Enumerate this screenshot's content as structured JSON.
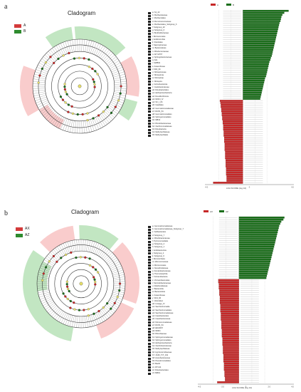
{
  "panels": [
    {
      "letter": "a",
      "title": "Cladogram",
      "legend": [
        {
          "label": "A",
          "color": "#d33b3b"
        },
        {
          "label": "B",
          "color": "#2e8b2e"
        }
      ],
      "colors": {
        "group1": "#c62828",
        "group2": "#1b6e1b",
        "ring": "#333333",
        "green_sector": "#8fd18f",
        "red_sector": "#f4a3a3"
      },
      "bar_legend": [
        "A",
        "B"
      ],
      "axis_label": "LDA SCORE (log 10)",
      "axis_ticks": [
        "-4.0",
        "0",
        "4.0"
      ],
      "list_labels": [
        "a: S1_22",
        "b: Muribaculaceae",
        "c: Muribaculales",
        "d: Rumminococcaceae",
        "e: Muribaculales_Subgroup_6",
        "f: Subgroup_22",
        "g: Subgroup_6",
        "h: Burkholderiaceae",
        "i: Micrococcales",
        "j: Acidimicrobiia",
        "k: Frankiales",
        "l: Saprospiraceae",
        "m: Bacteroidetes",
        "n: Rhodococcaceae",
        "o: AKYH767",
        "p: Sphingobacteriaceae",
        "q: bdo",
        "r: SWB02",
        "s: Anaerolineae",
        "t: KD4_96",
        "u: Nitrospiraceae",
        "v: Nitrospirota",
        "w: Nitrospirae",
        "x: Nitrospira",
        "y: Actinobacteriota",
        "z: Caulobacteraceae",
        "a0: Rokubacteriales",
        "a1: Alphaproteobacteria",
        "a2: Desulfovibrionia",
        "a3: MOF3_IV",
        "a4: SC_I_84",
        "a5: Gaiellales",
        "a6: Gemmatimonadaceae",
        "a7: RCP2_54",
        "a8: Gemmatimonadales",
        "a9: Sphingomonadales",
        "b0: MB19",
        "b1: Rhodobacteraceae",
        "b2: Xanthomonadaceae",
        "b3: Rokubacteria",
        "b4: Methylophilaceae",
        "b5: Methylophilales"
      ],
      "bars_group2": [
        95,
        86,
        82,
        80,
        79,
        78,
        76,
        75,
        74,
        73,
        72,
        71,
        70,
        69,
        68,
        67,
        66,
        65,
        64,
        63,
        62,
        61,
        60,
        58,
        57,
        55,
        54,
        53,
        52,
        51,
        50,
        49,
        48,
        46,
        45,
        44,
        43,
        42,
        41,
        40,
        39,
        38,
        37,
        36
      ],
      "bars_group1": [
        48,
        47,
        46,
        46,
        45,
        45,
        44,
        44,
        43,
        43,
        42,
        42,
        41,
        41,
        41,
        40,
        40,
        40,
        39,
        39,
        39,
        38,
        38,
        38,
        38,
        37,
        37,
        37,
        37,
        36,
        36,
        36,
        36,
        35,
        35,
        35,
        35,
        34,
        34,
        34,
        62
      ]
    },
    {
      "letter": "b",
      "title": "Cladogram",
      "legend": [
        {
          "label": "AX",
          "color": "#d33b3b"
        },
        {
          "label": "AZ",
          "color": "#2e8b2e"
        }
      ],
      "colors": {
        "group1": "#c62828",
        "group2": "#1b6e1b",
        "ring": "#333333",
        "green_sector": "#8fd18f",
        "red_sector": "#f4a3a3"
      },
      "bar_legend": [
        "AX",
        "AZ"
      ],
      "axis_label": "LDA SCORE (log 10)",
      "axis_ticks": [
        "-4.0",
        "-2.0",
        "0",
        "2.0",
        "4.0"
      ],
      "list_labels": [
        "a: Gemmatimonadaceae",
        "b: Gemmatimonadaceae_Subgroup_7",
        "c: Solibacterales",
        "d: Subgroup_7",
        "e: Rhodobacteraceae",
        "f: Pyrinomonadales",
        "g: Subgroup_2",
        "h: Subgroup_1",
        "i: Acidobacteriota",
        "j: Subgroup_2",
        "k: Subgroup_6",
        "l: Microtrichales",
        "m: Micrococcaceae",
        "n: Micrococcales",
        "o: Nocardioidaceae",
        "p: Ilumatobacteraceae",
        "q: Thermoleophilia",
        "r: Vicinamibacteria",
        "s: Vicinamibacterales",
        "t: Steroidobacteraceae",
        "u: Dokdonellaceae",
        "v: Bacteroidia",
        "w: Bacteroidota",
        "x: Anaerolineae",
        "y: KD4_96",
        "z: Chloroflexi",
        "a0: Lineage_IV",
        "a1: Saccharimonadia",
        "a2: Saccharimonadales",
        "a3: Saccharimonadaceae",
        "a4: Caulobacterales",
        "a5: Caulobacteraceae",
        "a6: Nitrosomonadaceae",
        "a7: RCP2_54",
        "a8: Ellin6067",
        "a9: MND1",
        "b0: Rhizobiaceae",
        "b1: Sphingomonadaceae",
        "b2: Sphingomonadales",
        "b3: Alphaproteobacteria",
        "b4: Xanthobacteraceae",
        "b5: Methylophilaceae",
        "b6: Hyphomicrobiaceae",
        "b7: JG36_TzT_191",
        "b8: Acetobacteraceae",
        "b9: Pseudomonadales",
        "c0: Bacilli",
        "c1: RTC24",
        "c2: Rokubacteriales",
        "c3: MB19"
      ],
      "bars_group2": [
        88,
        86,
        82,
        80,
        78,
        77,
        76,
        75,
        74,
        73,
        72,
        71,
        70,
        69,
        68,
        67,
        66,
        65,
        64,
        63,
        62,
        61,
        60,
        59,
        58,
        57,
        56,
        55,
        54,
        53
      ],
      "bars_group1": [
        40,
        40,
        39,
        39,
        39,
        38,
        38,
        38,
        37,
        37,
        37,
        37,
        36,
        36,
        36,
        36,
        35,
        35,
        35,
        35,
        34,
        34,
        34,
        34,
        33,
        33,
        33,
        33,
        32,
        32,
        32,
        32,
        31,
        31,
        31,
        31,
        30,
        30,
        30,
        30,
        29,
        29,
        29,
        29,
        28,
        28,
        28,
        27,
        27,
        42
      ]
    }
  ]
}
